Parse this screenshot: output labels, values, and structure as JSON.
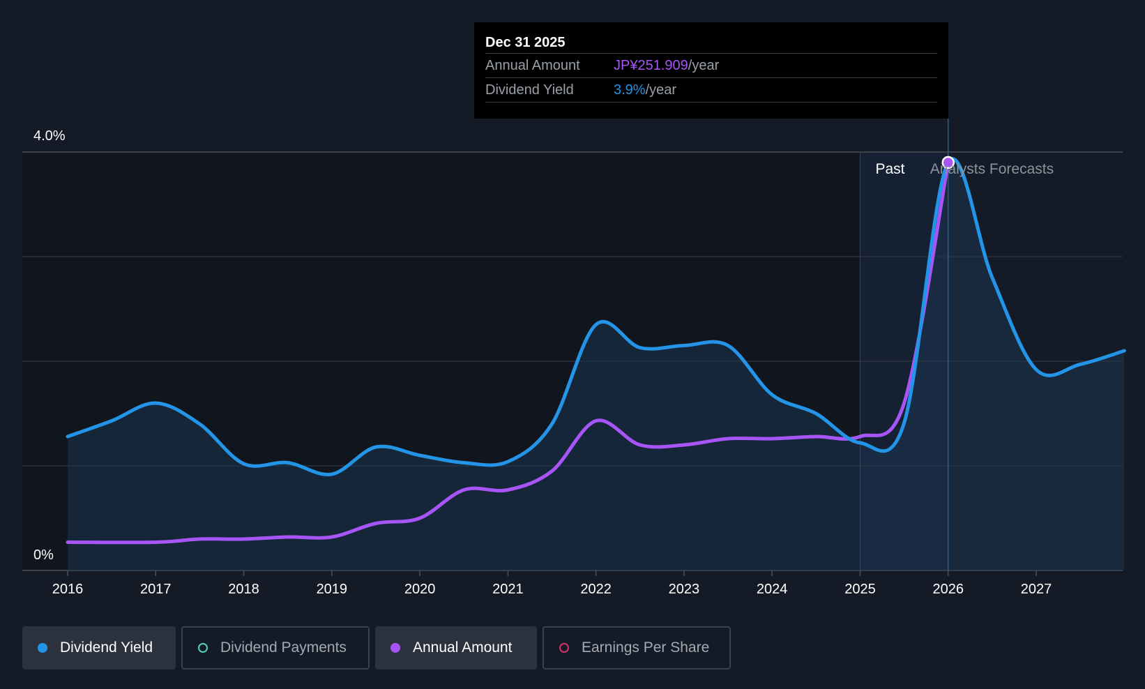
{
  "tooltip": {
    "date": "Dec 31 2025",
    "annual_amount_label": "Annual Amount",
    "annual_amount_value": "JP¥251.909",
    "annual_amount_unit": "/year",
    "dividend_yield_label": "Dividend Yield",
    "dividend_yield_value": "3.9%",
    "dividend_yield_unit": "/year"
  },
  "regions": {
    "past": "Past",
    "forecast": "Analysts Forecasts"
  },
  "legend": [
    {
      "label": "Dividend Yield",
      "state": "active",
      "color": "#2394e6"
    },
    {
      "label": "Dividend Payments",
      "state": "inactive",
      "color": "#4fd1c5"
    },
    {
      "label": "Annual Amount",
      "state": "active",
      "color": "#a855f7"
    },
    {
      "label": "Earnings Per Share",
      "state": "inactive",
      "color": "#d6336c"
    }
  ],
  "colors": {
    "yield": "#2394e6",
    "amount": "#a855f7",
    "background": "#151b26"
  },
  "chart_data": {
    "type": "line",
    "title": "",
    "xlabel": "",
    "ylabel": "",
    "ylim": [
      0,
      4.0
    ],
    "xlim": [
      2016,
      2028
    ],
    "y_tick_labels": [
      "4.0%",
      "0%"
    ],
    "y_ticks": [
      4.0,
      0
    ],
    "x_ticks": [
      "2016",
      "2017",
      "2018",
      "2019",
      "2020",
      "2021",
      "2022",
      "2023",
      "2024",
      "2025",
      "2026",
      "2027"
    ],
    "past_end": 2025.0,
    "highlight_x": 2026.0,
    "series": [
      {
        "name": "Dividend Yield",
        "unit": "%",
        "points": [
          [
            2016,
            1.28
          ],
          [
            2016.5,
            1.43
          ],
          [
            2017,
            1.6
          ],
          [
            2017.5,
            1.4
          ],
          [
            2018,
            1.02
          ],
          [
            2018.5,
            1.03
          ],
          [
            2019,
            0.92
          ],
          [
            2019.5,
            1.18
          ],
          [
            2020,
            1.1
          ],
          [
            2020.5,
            1.03
          ],
          [
            2021,
            1.04
          ],
          [
            2021.5,
            1.4
          ],
          [
            2022,
            2.35
          ],
          [
            2022.5,
            2.13
          ],
          [
            2023,
            2.15
          ],
          [
            2023.5,
            2.15
          ],
          [
            2024,
            1.68
          ],
          [
            2024.5,
            1.5
          ],
          [
            2025,
            1.22
          ],
          [
            2025.5,
            1.41
          ],
          [
            2026,
            3.9
          ],
          [
            2026.5,
            2.8
          ],
          [
            2027,
            1.92
          ],
          [
            2027.5,
            1.97
          ],
          [
            2028,
            2.1
          ]
        ]
      },
      {
        "name": "Annual Amount",
        "unit": "JP¥ (scaled to chart)",
        "points": [
          [
            2016,
            0.27
          ],
          [
            2017,
            0.27
          ],
          [
            2017.5,
            0.3
          ],
          [
            2018,
            0.3
          ],
          [
            2018.5,
            0.32
          ],
          [
            2019,
            0.32
          ],
          [
            2019.5,
            0.45
          ],
          [
            2020,
            0.5
          ],
          [
            2020.5,
            0.77
          ],
          [
            2021,
            0.77
          ],
          [
            2021.5,
            0.95
          ],
          [
            2022,
            1.43
          ],
          [
            2022.5,
            1.2
          ],
          [
            2023,
            1.2
          ],
          [
            2023.5,
            1.26
          ],
          [
            2024,
            1.26
          ],
          [
            2024.5,
            1.28
          ],
          [
            2025,
            1.28
          ],
          [
            2025.5,
            1.6
          ],
          [
            2026,
            3.9
          ]
        ]
      }
    ]
  }
}
